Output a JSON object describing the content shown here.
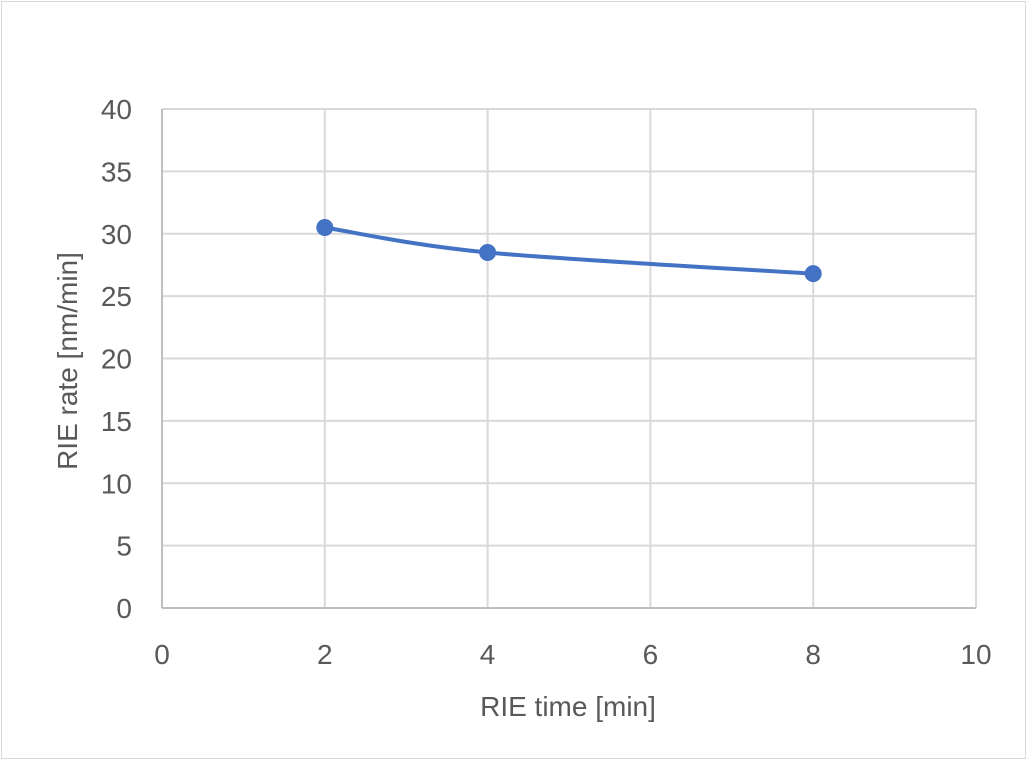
{
  "chart_data": {
    "type": "scatter",
    "title": "",
    "xlabel": "RIE time [min]",
    "ylabel": "RIE rate [nm/min]",
    "xlim": [
      0,
      10
    ],
    "ylim": [
      0,
      40
    ],
    "x_ticks": [
      "0",
      "2",
      "4",
      "6",
      "8",
      "10"
    ],
    "y_ticks": [
      "0",
      "5",
      "10",
      "15",
      "20",
      "25",
      "30",
      "35",
      "40"
    ],
    "x_tick_values": [
      0,
      2,
      4,
      6,
      8,
      10
    ],
    "y_tick_values": [
      0,
      5,
      10,
      15,
      20,
      25,
      30,
      35,
      40
    ],
    "grid": true,
    "legend": "none",
    "series": [
      {
        "x": [
          2,
          4,
          8
        ],
        "y": [
          30.5,
          28.5,
          26.8
        ],
        "color": "#4472c4",
        "markers": true,
        "smooth": true
      }
    ]
  }
}
